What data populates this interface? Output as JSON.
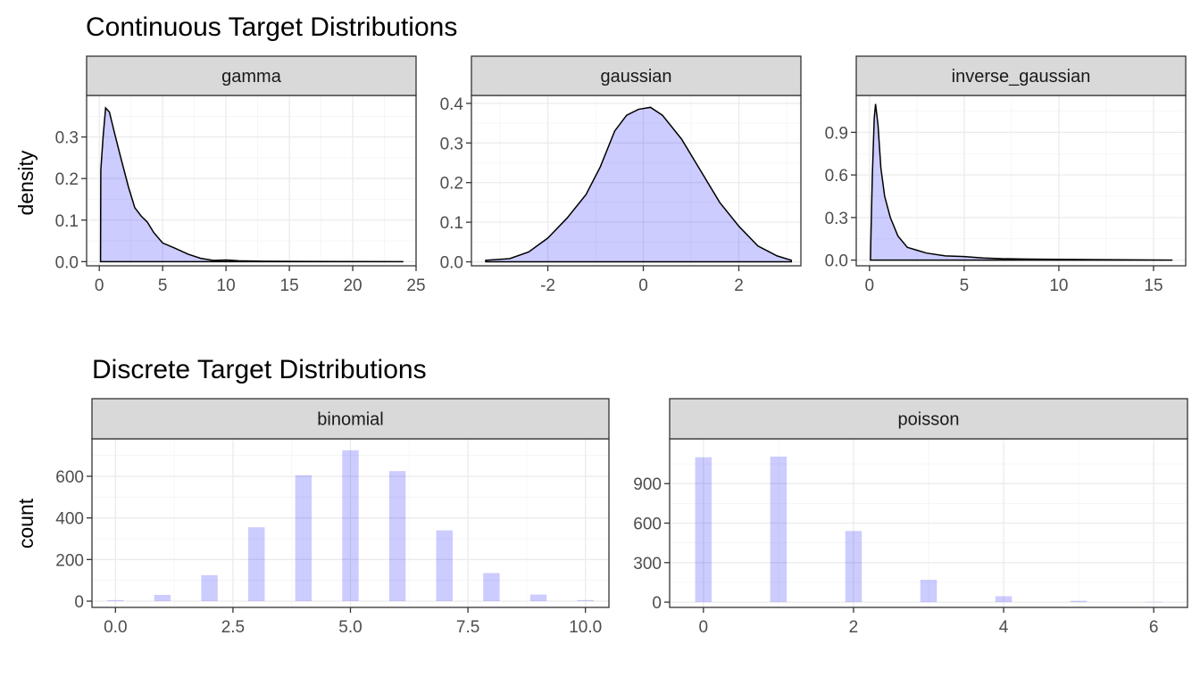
{
  "titles": {
    "continuous": "Continuous Target Distributions",
    "discrete": "Discrete Target Distributions"
  },
  "axis_titles": {
    "continuous_y": "density",
    "discrete_y": "count"
  },
  "colors": {
    "fill": "#0000ff33",
    "strip": "#d9d9d9",
    "border": "#333333",
    "grid": "#ebebeb",
    "text": "#4d4d4d"
  },
  "chart_data": [
    {
      "type": "area",
      "facet": "gamma",
      "xlim": [
        -1,
        25
      ],
      "ylim": [
        -0.01,
        0.4
      ],
      "x_ticks": [
        0,
        5,
        10,
        15,
        20,
        25
      ],
      "y_ticks": [
        0.0,
        0.1,
        0.2,
        0.3
      ],
      "x_tick_labels": [
        "0",
        "5",
        "10",
        "15",
        "20",
        "25"
      ],
      "y_tick_labels": [
        "0.0",
        "0.1",
        "0.2",
        "0.3"
      ],
      "grid": true,
      "points": [
        [
          0.1,
          0.0
        ],
        [
          0.12,
          0.22
        ],
        [
          0.3,
          0.3
        ],
        [
          0.5,
          0.37
        ],
        [
          0.8,
          0.36
        ],
        [
          1.2,
          0.31
        ],
        [
          1.7,
          0.25
        ],
        [
          2.3,
          0.18
        ],
        [
          2.8,
          0.13
        ],
        [
          3.3,
          0.11
        ],
        [
          3.8,
          0.095
        ],
        [
          4.3,
          0.07
        ],
        [
          5.0,
          0.045
        ],
        [
          6.0,
          0.032
        ],
        [
          7.0,
          0.018
        ],
        [
          8.0,
          0.008
        ],
        [
          9.0,
          0.003
        ],
        [
          10.0,
          0.004
        ],
        [
          11.0,
          0.002
        ],
        [
          13.0,
          0.001
        ],
        [
          16.0,
          0.0005
        ],
        [
          20.0,
          0.0002
        ],
        [
          24.0,
          0.0
        ]
      ]
    },
    {
      "type": "area",
      "facet": "gaussian",
      "xlim": [
        -3.6,
        3.3
      ],
      "ylim": [
        -0.01,
        0.42
      ],
      "x_ticks": [
        -2,
        0,
        2
      ],
      "y_ticks": [
        0.0,
        0.1,
        0.2,
        0.3,
        0.4
      ],
      "x_tick_labels": [
        "-2",
        "0",
        "2"
      ],
      "y_tick_labels": [
        "0.0",
        "0.1",
        "0.2",
        "0.3",
        "0.4"
      ],
      "grid": true,
      "points": [
        [
          -3.3,
          0.0
        ],
        [
          -3.3,
          0.004
        ],
        [
          -2.8,
          0.008
        ],
        [
          -2.4,
          0.025
        ],
        [
          -2.0,
          0.06
        ],
        [
          -1.6,
          0.11
        ],
        [
          -1.2,
          0.17
        ],
        [
          -0.9,
          0.24
        ],
        [
          -0.6,
          0.33
        ],
        [
          -0.35,
          0.37
        ],
        [
          -0.1,
          0.385
        ],
        [
          0.15,
          0.39
        ],
        [
          0.4,
          0.37
        ],
        [
          0.8,
          0.31
        ],
        [
          1.2,
          0.23
        ],
        [
          1.6,
          0.15
        ],
        [
          2.0,
          0.09
        ],
        [
          2.4,
          0.04
        ],
        [
          2.8,
          0.015
        ],
        [
          3.1,
          0.004
        ],
        [
          3.1,
          0.0
        ]
      ]
    },
    {
      "type": "area",
      "facet": "inverse_gaussian",
      "xlim": [
        -0.7,
        16.7
      ],
      "ylim": [
        -0.04,
        1.16
      ],
      "x_ticks": [
        0,
        5,
        10,
        15
      ],
      "y_ticks": [
        0.0,
        0.3,
        0.6,
        0.9
      ],
      "x_tick_labels": [
        "0",
        "5",
        "10",
        "15"
      ],
      "y_tick_labels": [
        "0.0",
        "0.3",
        "0.6",
        "0.9"
      ],
      "grid": true,
      "points": [
        [
          0.05,
          0.0
        ],
        [
          0.08,
          0.2
        ],
        [
          0.15,
          0.6
        ],
        [
          0.25,
          1.0
        ],
        [
          0.32,
          1.1
        ],
        [
          0.45,
          0.95
        ],
        [
          0.6,
          0.65
        ],
        [
          0.8,
          0.45
        ],
        [
          1.1,
          0.3
        ],
        [
          1.5,
          0.17
        ],
        [
          2.0,
          0.09
        ],
        [
          2.5,
          0.07
        ],
        [
          3.0,
          0.05
        ],
        [
          4.0,
          0.03
        ],
        [
          5.0,
          0.025
        ],
        [
          6.0,
          0.015
        ],
        [
          7.0,
          0.01
        ],
        [
          9.0,
          0.006
        ],
        [
          12.0,
          0.003
        ],
        [
          16.0,
          0.0
        ]
      ]
    },
    {
      "type": "bar",
      "facet": "binomial",
      "xlim": [
        -0.5,
        10.5
      ],
      "ylim": [
        -30,
        780
      ],
      "x_ticks": [
        0,
        2.5,
        5,
        7.5,
        10
      ],
      "y_ticks": [
        0,
        200,
        400,
        600
      ],
      "x_tick_labels": [
        "0.0",
        "2.5",
        "5.0",
        "7.5",
        "10.0"
      ],
      "y_tick_labels": [
        "0",
        "200",
        "400",
        "600"
      ],
      "grid": true,
      "categories": [
        0,
        1,
        2,
        3,
        4,
        5,
        6,
        7,
        8,
        9,
        10
      ],
      "values": [
        5,
        30,
        125,
        355,
        605,
        725,
        625,
        340,
        135,
        32,
        5
      ],
      "bar_width": 0.35
    },
    {
      "type": "bar",
      "facet": "poisson",
      "xlim": [
        -0.45,
        6.45
      ],
      "ylim": [
        -40,
        1240
      ],
      "x_ticks": [
        0,
        2,
        4,
        6
      ],
      "y_ticks": [
        0,
        300,
        600,
        900
      ],
      "x_tick_labels": [
        "0",
        "2",
        "4",
        "6"
      ],
      "y_tick_labels": [
        "0",
        "300",
        "600",
        "900"
      ],
      "grid": true,
      "categories": [
        0,
        1,
        2,
        3,
        4,
        5,
        6
      ],
      "values": [
        1100,
        1105,
        540,
        170,
        45,
        10,
        2
      ],
      "bar_width": 0.22
    }
  ]
}
